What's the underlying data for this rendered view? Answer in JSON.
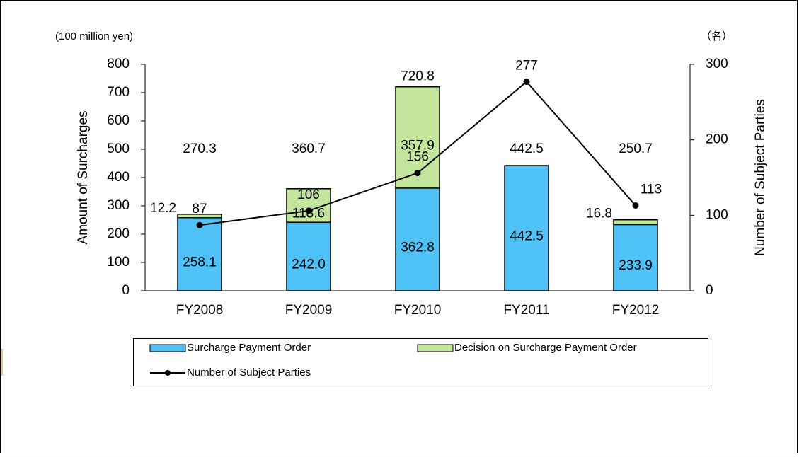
{
  "chart_data": {
    "type": "bar",
    "y_unit": "(100 million yen)",
    "y2_unit": "（名）",
    "ylabel": "Amount of Surcharges",
    "y2label": "Number of Subject Parties",
    "categories": [
      "FY2008",
      "FY2009",
      "FY2010",
      "FY2011",
      "FY2012"
    ],
    "series": [
      {
        "name": "Surcharge Payment Order",
        "color": "#4fc3f7",
        "values": [
          258.1,
          242,
          362.8,
          442.5,
          233.9
        ],
        "value_labels": [
          "258.1",
          "242.0",
          "362.8",
          "442.5",
          "233.9"
        ]
      },
      {
        "name": "Decision on Surcharge Payment Order",
        "color": "#c4e59c",
        "values": [
          12.2,
          118.6,
          357.9,
          null,
          16.8
        ]
      },
      {
        "name": "Number of Subject Parties",
        "color": "#000000",
        "axis": "y2",
        "values": [
          87,
          106,
          156,
          277,
          113
        ]
      }
    ],
    "totals": [
      270.3,
      360.7,
      720.8,
      442.5,
      250.7
    ],
    "ylim": [
      0,
      800
    ],
    "yticks": [
      0,
      100,
      200,
      300,
      400,
      500,
      600,
      700,
      800
    ],
    "y2lim": [
      0,
      300
    ],
    "y2ticks": [
      0,
      100,
      200,
      300
    ]
  }
}
